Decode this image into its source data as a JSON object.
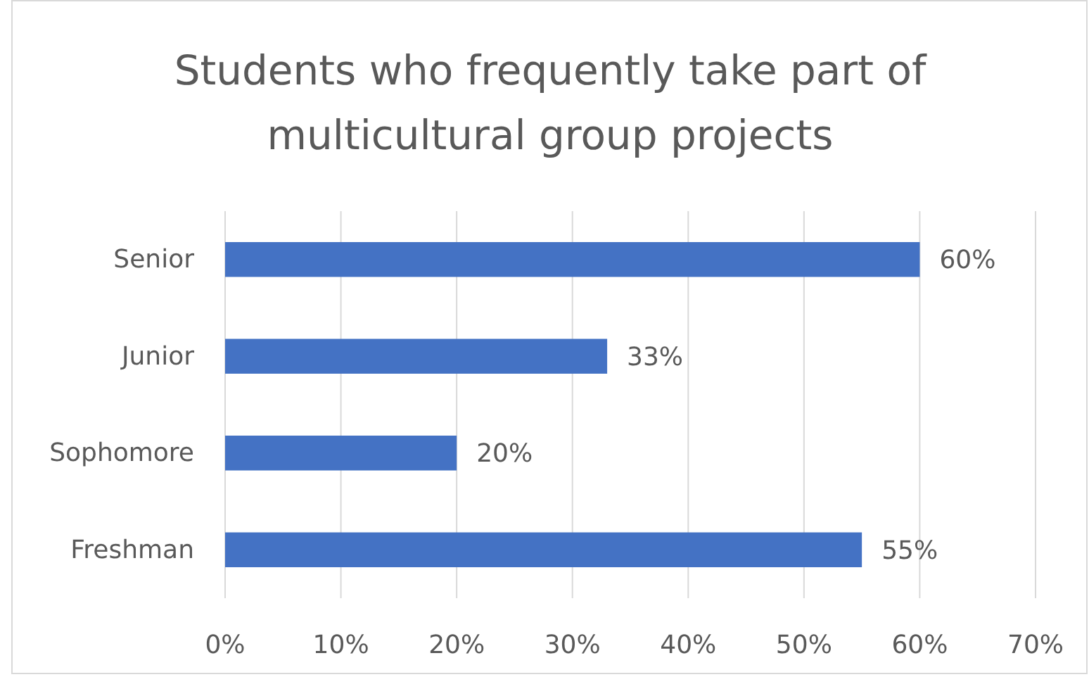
{
  "chart_data": {
    "type": "bar",
    "orientation": "horizontal",
    "title": "Students who frequently take part of multicultural group projects",
    "categories": [
      "Senior",
      "Junior",
      "Sophomore",
      "Freshman"
    ],
    "values": [
      60,
      33,
      20,
      55
    ],
    "value_labels": [
      "60%",
      "33%",
      "20%",
      "55%"
    ],
    "color": "#4472c4",
    "xlim": [
      0,
      70
    ],
    "xticks": [
      {
        "value": 0,
        "label": "0%"
      },
      {
        "value": 10,
        "label": "10%"
      },
      {
        "value": 20,
        "label": "20%"
      },
      {
        "value": 30,
        "label": "30%"
      },
      {
        "value": 40,
        "label": "40%"
      },
      {
        "value": 50,
        "label": "50%"
      },
      {
        "value": 60,
        "label": "60%"
      },
      {
        "value": 70,
        "label": "70%"
      }
    ],
    "grid": "x"
  }
}
